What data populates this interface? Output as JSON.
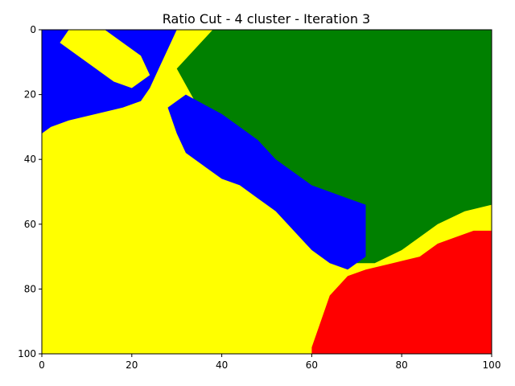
{
  "chart_data": {
    "type": "heatmap",
    "title": "Ratio Cut - 4 cluster - Iteration 3",
    "xlabel": "",
    "ylabel": "",
    "xlim": [
      0,
      100
    ],
    "ylim": [
      100,
      0
    ],
    "grid": false,
    "x_ticks": [
      "0",
      "20",
      "40",
      "60",
      "80",
      "100"
    ],
    "y_ticks": [
      "0",
      "20",
      "40",
      "60",
      "80",
      "100"
    ],
    "grid_size": [
      100,
      100
    ],
    "cluster_colors": {
      "yellow": "#ffff00",
      "green": "#008000",
      "blue": "#0000ff",
      "red": "#ff0000"
    },
    "regions": [
      {
        "cluster": "yellow",
        "polygon": [
          [
            0,
            0
          ],
          [
            100,
            0
          ],
          [
            100,
            100
          ],
          [
            0,
            100
          ]
        ]
      },
      {
        "cluster": "green",
        "polygon": [
          [
            38,
            0
          ],
          [
            100,
            0
          ],
          [
            100,
            54
          ],
          [
            94,
            56
          ],
          [
            88,
            60
          ],
          [
            84,
            64
          ],
          [
            80,
            68
          ],
          [
            74,
            72
          ],
          [
            70,
            72
          ],
          [
            66,
            66
          ],
          [
            60,
            60
          ],
          [
            56,
            56
          ],
          [
            50,
            52
          ],
          [
            46,
            46
          ],
          [
            40,
            40
          ],
          [
            34,
            34
          ],
          [
            30,
            28
          ],
          [
            34,
            22
          ],
          [
            30,
            12
          ]
        ]
      },
      {
        "cluster": "blue",
        "polygon": [
          [
            40,
            26
          ],
          [
            44,
            30
          ],
          [
            48,
            34
          ],
          [
            52,
            40
          ],
          [
            56,
            44
          ],
          [
            60,
            48
          ],
          [
            64,
            50
          ],
          [
            68,
            52
          ],
          [
            72,
            54
          ],
          [
            72,
            64
          ],
          [
            72,
            70
          ],
          [
            68,
            74
          ],
          [
            64,
            72
          ],
          [
            60,
            68
          ],
          [
            56,
            62
          ],
          [
            52,
            56
          ],
          [
            48,
            52
          ],
          [
            44,
            48
          ],
          [
            40,
            46
          ],
          [
            36,
            42
          ],
          [
            32,
            38
          ],
          [
            30,
            32
          ],
          [
            28,
            24
          ],
          [
            32,
            20
          ]
        ]
      },
      {
        "cluster": "blue",
        "polygon": [
          [
            0,
            0
          ],
          [
            30,
            0
          ],
          [
            28,
            6
          ],
          [
            26,
            12
          ],
          [
            24,
            18
          ],
          [
            22,
            22
          ],
          [
            18,
            24
          ],
          [
            12,
            26
          ],
          [
            6,
            28
          ],
          [
            2,
            30
          ],
          [
            0,
            32
          ]
        ]
      },
      {
        "cluster": "yellow",
        "polygon": [
          [
            6,
            0
          ],
          [
            14,
            0
          ],
          [
            18,
            4
          ],
          [
            22,
            8
          ],
          [
            24,
            14
          ],
          [
            20,
            18
          ],
          [
            16,
            16
          ],
          [
            12,
            12
          ],
          [
            8,
            8
          ],
          [
            4,
            4
          ]
        ]
      },
      {
        "cluster": "red",
        "polygon": [
          [
            100,
            62
          ],
          [
            96,
            62
          ],
          [
            92,
            64
          ],
          [
            88,
            66
          ],
          [
            84,
            70
          ],
          [
            78,
            72
          ],
          [
            72,
            74
          ],
          [
            68,
            76
          ],
          [
            64,
            82
          ],
          [
            62,
            90
          ],
          [
            60,
            98
          ],
          [
            60,
            100
          ],
          [
            100,
            100
          ]
        ]
      }
    ]
  }
}
